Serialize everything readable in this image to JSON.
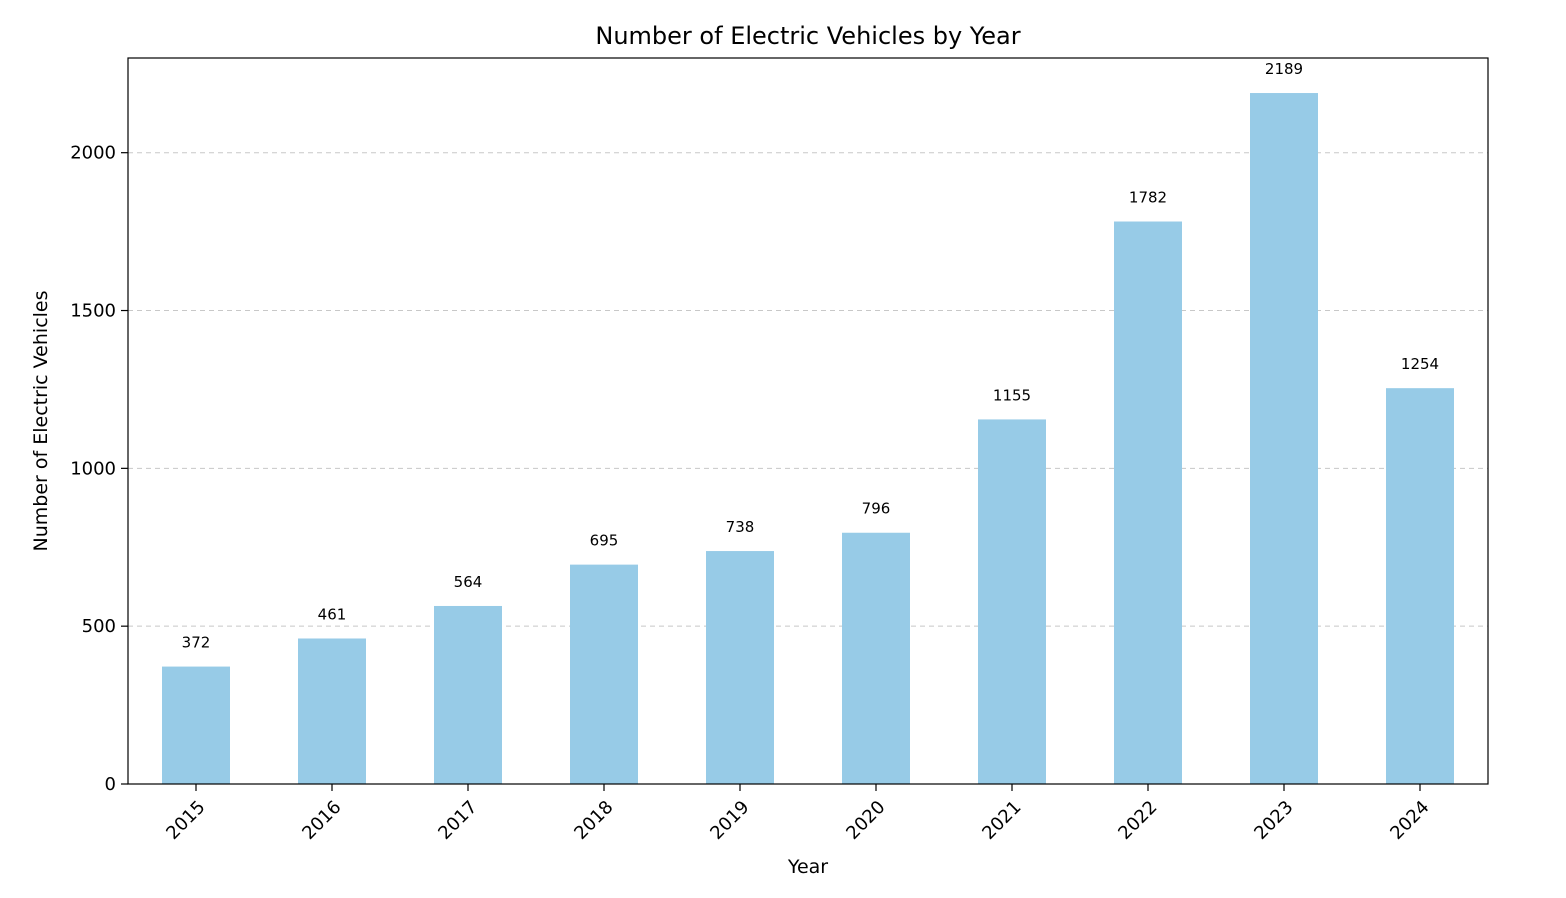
{
  "chart_data": {
    "type": "bar",
    "title": "Number of Electric Vehicles by Year",
    "xlabel": "Year",
    "ylabel": "Number of Electric Vehicles",
    "categories": [
      "2015",
      "2016",
      "2017",
      "2018",
      "2019",
      "2020",
      "2021",
      "2022",
      "2023",
      "2024"
    ],
    "values": [
      372,
      461,
      564,
      695,
      738,
      796,
      1155,
      1782,
      2189,
      1254
    ],
    "ylim": [
      0,
      2300
    ],
    "yticks": [
      0,
      500,
      1000,
      1500,
      2000
    ],
    "grid": "y-dashed",
    "legend": "none",
    "bar_color": "#97cbe7",
    "grid_color": "#c8c8c8"
  }
}
